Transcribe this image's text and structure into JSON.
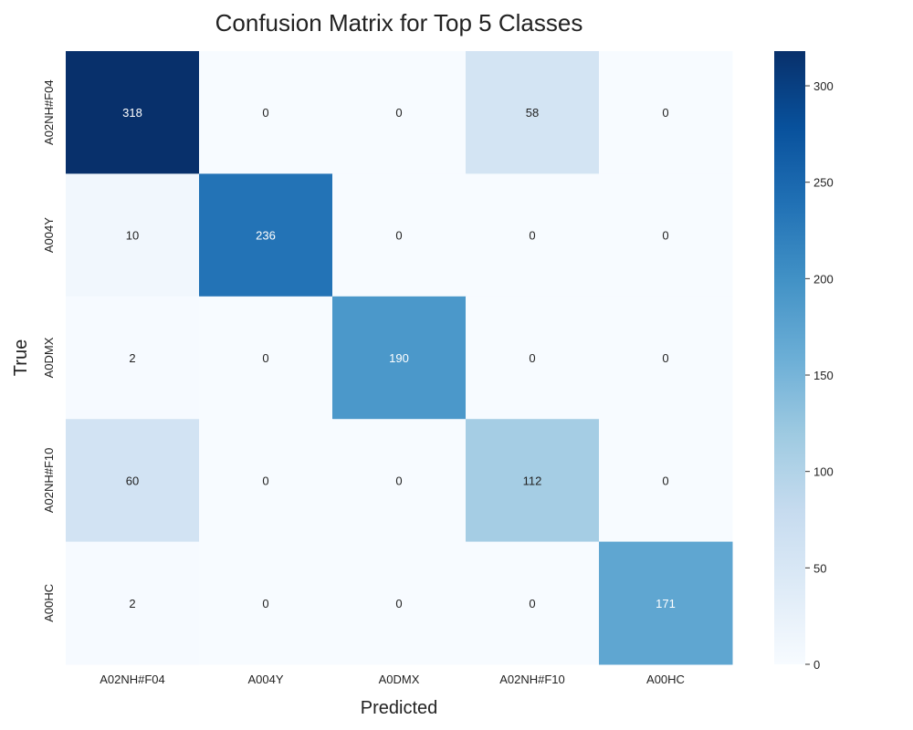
{
  "chart_data": {
    "type": "heatmap",
    "title": "Confusion Matrix for Top 5 Classes",
    "xlabel": "Predicted",
    "ylabel": "True",
    "x_categories": [
      "A02NH#F04",
      "A004Y",
      "A0DMX",
      "A02NH#F10",
      "A00HC"
    ],
    "y_categories": [
      "A02NH#F04",
      "A004Y",
      "A0DMX",
      "A02NH#F10",
      "A00HC"
    ],
    "values": [
      [
        318,
        0,
        0,
        58,
        0
      ],
      [
        10,
        236,
        0,
        0,
        0
      ],
      [
        2,
        0,
        190,
        0,
        0
      ],
      [
        60,
        0,
        0,
        112,
        0
      ],
      [
        2,
        0,
        0,
        0,
        171
      ]
    ],
    "colorbar": {
      "vmin": 0,
      "vmax": 318,
      "ticks": [
        0,
        50,
        100,
        150,
        200,
        250,
        300
      ],
      "colormap": "Blues"
    },
    "grid": false
  }
}
